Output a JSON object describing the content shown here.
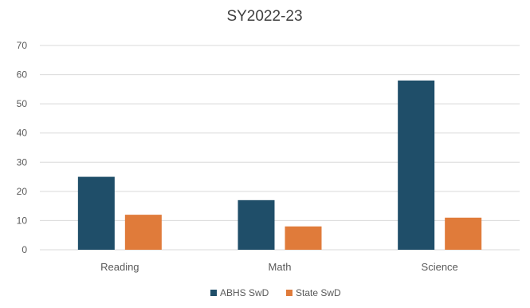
{
  "chart_data": {
    "type": "bar",
    "title": "SY2022-23",
    "categories": [
      "Reading",
      "Math",
      "Science"
    ],
    "series": [
      {
        "name": "ABHS SwD",
        "values": [
          25,
          17,
          58
        ],
        "color": "#1f4e69"
      },
      {
        "name": "State SwD",
        "values": [
          12,
          8,
          11
        ],
        "color": "#e07b3a"
      }
    ],
    "yticks": [
      "0",
      "10",
      "20",
      "30",
      "40",
      "50",
      "60",
      "70"
    ],
    "ylim": [
      0,
      70
    ],
    "grid": true,
    "legend": "bottom"
  }
}
